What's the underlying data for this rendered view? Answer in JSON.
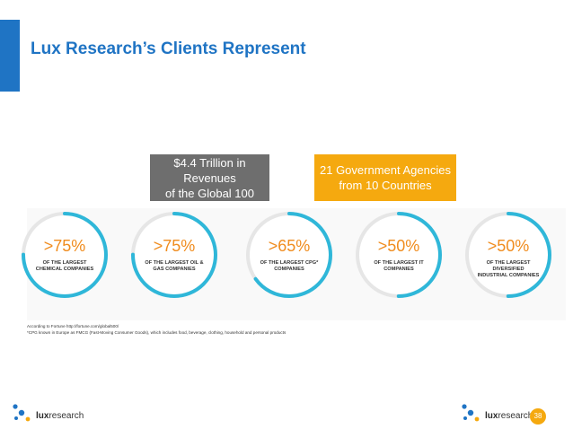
{
  "slide": {
    "title": "Lux Research’s Clients Represent",
    "callouts": [
      {
        "text": "$4.4 Trillion in Revenues\nof the Global 100",
        "color": "#6e6e6e"
      },
      {
        "text": "21 Government Agencies\nfrom 10 Countries",
        "color": "#f5a90f"
      }
    ],
    "stats": [
      {
        "value": ">75%",
        "label": "OF THE LARGEST\nCHEMICAL COMPANIES",
        "fraction": 0.75
      },
      {
        "value": ">75%",
        "label": "OF THE LARGEST OIL &\nGAS COMPANIES",
        "fraction": 0.75
      },
      {
        "value": ">65%",
        "label": "OF THE LARGEST CPG*\nCOMPANIES",
        "fraction": 0.65
      },
      {
        "value": ">50%",
        "label": "OF THE LARGEST IT\nCOMPANIES",
        "fraction": 0.5
      },
      {
        "value": ">50%",
        "label": "OF THE LARGEST\nDIVERSIFIED\nINDUSTRIAL COMPANIES",
        "fraction": 0.5
      }
    ],
    "footnotes": [
      "According to Fortune http://fortune.com/global500/",
      "*CPG known in Europe as FMCG (Fast-Moving Consumer Goods), which includes food, beverage, clothing, household and personal products"
    ],
    "logo": {
      "prefix": "lux",
      "suffix": "research"
    },
    "page_number": "38",
    "colors": {
      "accent": "#1f74c4",
      "ring": "#2fb7d9",
      "ring_track": "#e6e6e6",
      "stat_value": "#f08c1e",
      "logo_dot_blue": "#1f74c4",
      "logo_dot_orange": "#f5a90f"
    }
  }
}
